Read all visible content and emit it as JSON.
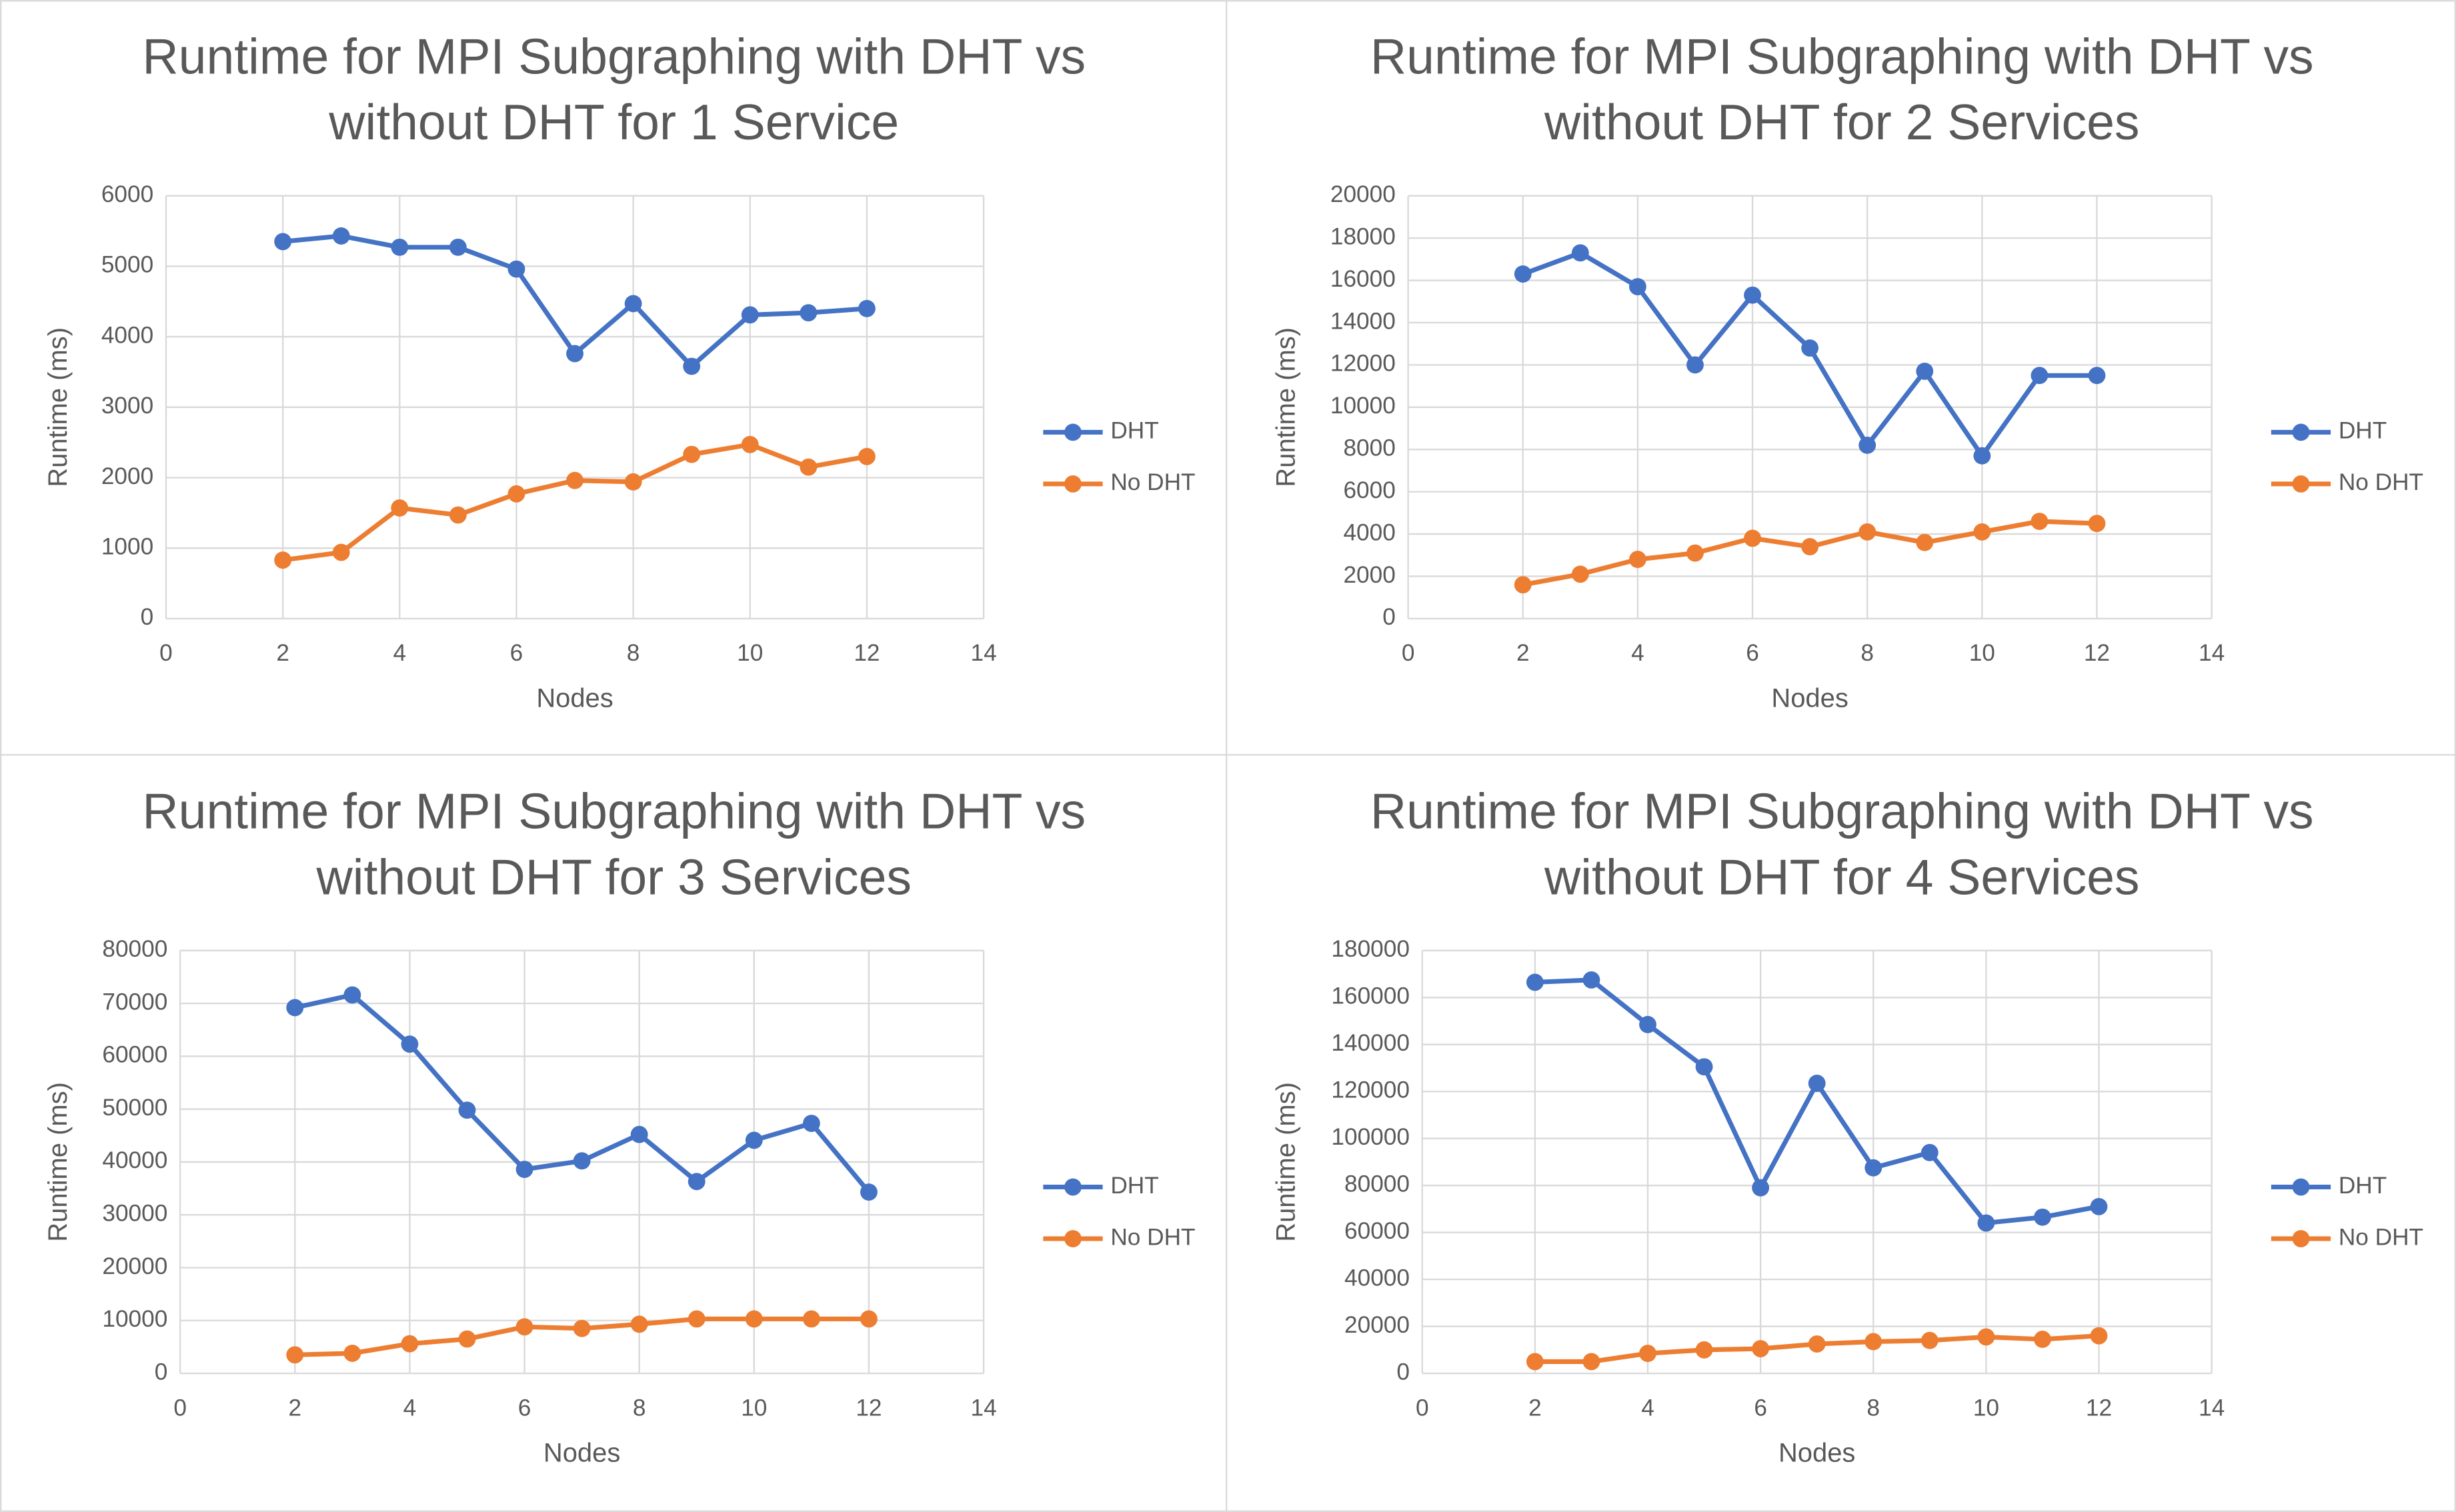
{
  "chart_data": [
    {
      "type": "line",
      "title": "Runtime for MPI Subgraphing with DHT vs without DHT for 1 Service",
      "x_label": "Nodes",
      "y_label": "Runtime (ms)",
      "x": [
        2,
        3,
        4,
        5,
        6,
        7,
        8,
        9,
        10,
        11,
        12
      ],
      "series": [
        {
          "name": "DHT",
          "color": "#4472c4",
          "values": [
            5350,
            5430,
            5270,
            5270,
            4960,
            3760,
            4470,
            3580,
            4310,
            4340,
            4400
          ]
        },
        {
          "name": "No DHT",
          "color": "#ed7d31",
          "values": [
            830,
            940,
            1570,
            1470,
            1770,
            1960,
            1940,
            2330,
            2470,
            2150,
            2300
          ]
        }
      ],
      "xlim": [
        0,
        14
      ],
      "xticks": [
        0,
        2,
        4,
        6,
        8,
        10,
        12,
        14
      ],
      "ylim": [
        0,
        6000
      ],
      "yticks": [
        0,
        1000,
        2000,
        3000,
        4000,
        5000,
        6000
      ],
      "grid": true,
      "legend": "right"
    },
    {
      "type": "line",
      "title": "Runtime for MPI Subgraphing with DHT vs without DHT for 2 Services",
      "x_label": "Nodes",
      "y_label": "Runtime (ms)",
      "x": [
        2,
        3,
        4,
        5,
        6,
        7,
        8,
        9,
        10,
        11,
        12
      ],
      "series": [
        {
          "name": "DHT",
          "color": "#4472c4",
          "values": [
            16300,
            17300,
            15700,
            12000,
            15300,
            12800,
            8200,
            11700,
            7700,
            11500,
            11500
          ]
        },
        {
          "name": "No DHT",
          "color": "#ed7d31",
          "values": [
            1600,
            2100,
            2800,
            3100,
            3800,
            3400,
            4100,
            3600,
            4100,
            4600,
            4500
          ]
        }
      ],
      "xlim": [
        0,
        14
      ],
      "xticks": [
        0,
        2,
        4,
        6,
        8,
        10,
        12,
        14
      ],
      "ylim": [
        0,
        20000
      ],
      "yticks": [
        0,
        2000,
        4000,
        6000,
        8000,
        10000,
        12000,
        14000,
        16000,
        18000,
        20000
      ],
      "grid": true,
      "legend": "right"
    },
    {
      "type": "line",
      "title": "Runtime for MPI Subgraphing with DHT vs without DHT for 3 Services",
      "x_label": "Nodes",
      "y_label": "Runtime (ms)",
      "x": [
        2,
        3,
        4,
        5,
        6,
        7,
        8,
        9,
        10,
        11,
        12
      ],
      "series": [
        {
          "name": "DHT",
          "color": "#4472c4",
          "values": [
            69200,
            71600,
            62300,
            49800,
            38600,
            40200,
            45200,
            36300,
            44100,
            47300,
            34300
          ]
        },
        {
          "name": "No DHT",
          "color": "#ed7d31",
          "values": [
            3500,
            3800,
            5600,
            6500,
            8800,
            8500,
            9300,
            10300,
            10300,
            10300,
            10300
          ]
        }
      ],
      "xlim": [
        0,
        14
      ],
      "xticks": [
        0,
        2,
        4,
        6,
        8,
        10,
        12,
        14
      ],
      "ylim": [
        0,
        80000
      ],
      "yticks": [
        0,
        10000,
        20000,
        30000,
        40000,
        50000,
        60000,
        70000,
        80000
      ],
      "grid": true,
      "legend": "right"
    },
    {
      "type": "line",
      "title": "Runtime for MPI Subgraphing with DHT vs without DHT for 4 Services",
      "x_label": "Nodes",
      "y_label": "Runtime (ms)",
      "x": [
        2,
        3,
        4,
        5,
        6,
        7,
        8,
        9,
        10,
        11,
        12
      ],
      "series": [
        {
          "name": "DHT",
          "color": "#4472c4",
          "values": [
            166500,
            167500,
            148500,
            130500,
            79000,
            123500,
            87500,
            94000,
            64000,
            66500,
            71000
          ]
        },
        {
          "name": "No DHT",
          "color": "#ed7d31",
          "values": [
            5000,
            5000,
            8500,
            10000,
            10500,
            12500,
            13500,
            14000,
            15500,
            14500,
            16000
          ]
        }
      ],
      "xlim": [
        0,
        14
      ],
      "xticks": [
        0,
        2,
        4,
        6,
        8,
        10,
        12,
        14
      ],
      "ylim": [
        0,
        180000
      ],
      "yticks": [
        0,
        20000,
        40000,
        60000,
        80000,
        100000,
        120000,
        140000,
        160000,
        180000
      ],
      "grid": true,
      "legend": "right"
    }
  ]
}
